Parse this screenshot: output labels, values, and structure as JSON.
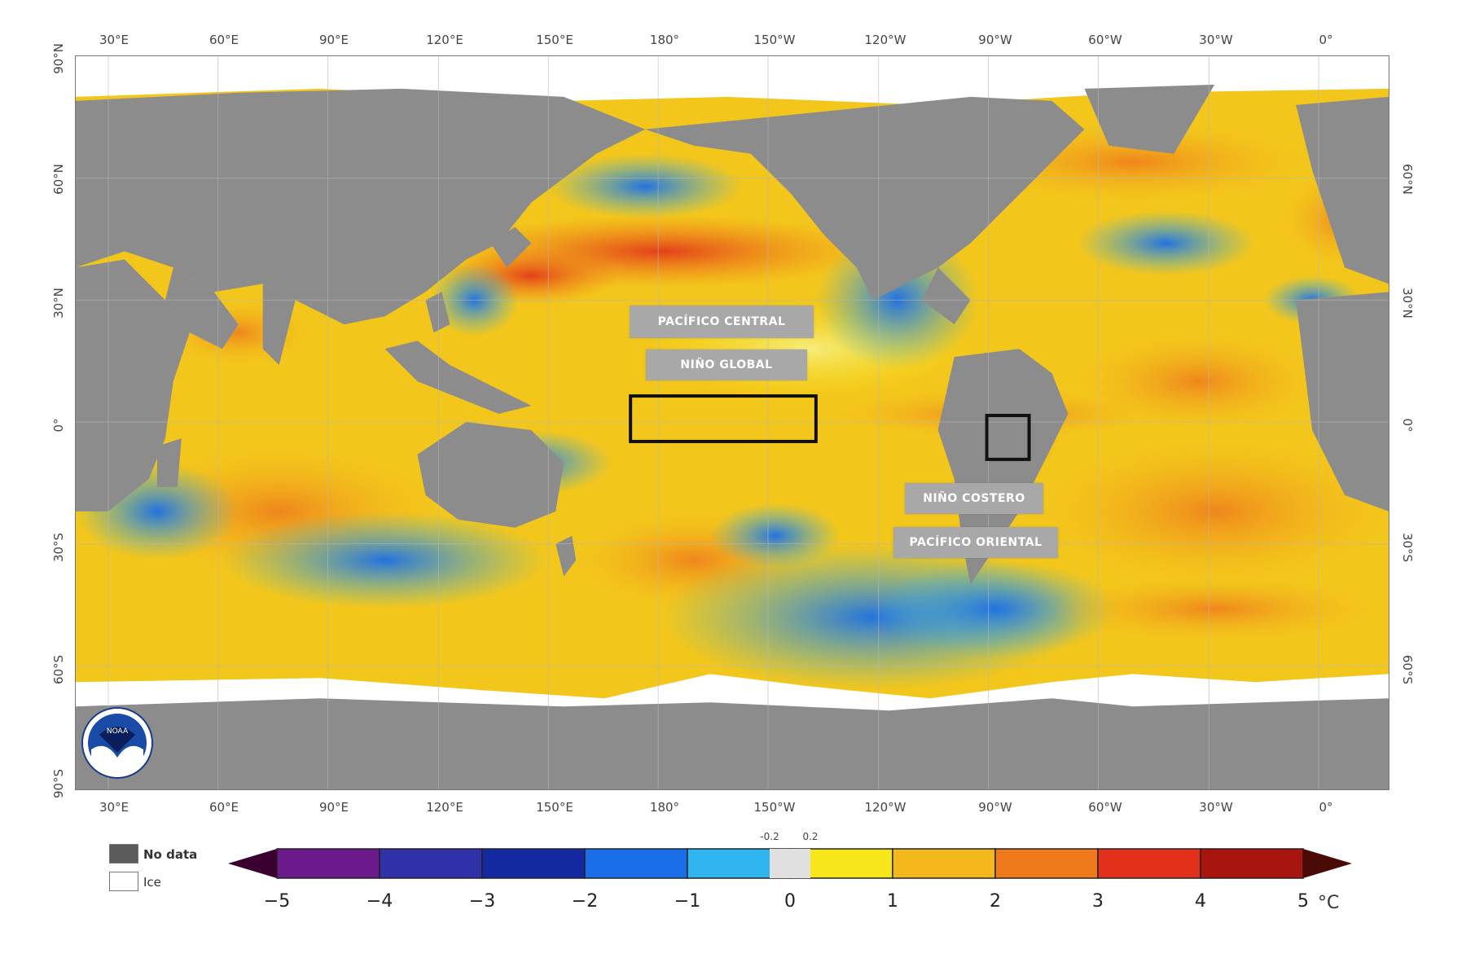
{
  "map": {
    "top_lon_labels": [
      "30°E",
      "60°E",
      "90°E",
      "120°E",
      "150°E",
      "180°",
      "150°W",
      "120°W",
      "90°W",
      "60°W",
      "30°W",
      "0°"
    ],
    "bottom_lon_labels": [
      "30°E",
      "60°E",
      "90°E",
      "120°E",
      "150°E",
      "180°",
      "150°W",
      "120°W",
      "90°W",
      "60°W",
      "30°W",
      "0°"
    ],
    "left_lat_labels": [
      "90°N",
      "60°N",
      "30°N",
      "0°",
      "30°S",
      "60°S",
      "90°S"
    ],
    "right_lat_labels": [
      "60°N",
      "30°N",
      "0°",
      "30°S",
      "60°S"
    ],
    "region_labels": {
      "pacifico_central": "PACÍFICO CENTRAL",
      "nino_global": "NIÑO GLOBAL",
      "nino_costero": "NIÑO COSTERO",
      "pacifico_oriental": "PACÍFICO ORIENTAL"
    },
    "colors": {
      "land": "#8c8c8c",
      "no_data": "#5a5a5a",
      "ice": "#ffffff",
      "box_outline": "#111111"
    }
  },
  "legend": {
    "no_data_label": "No data",
    "ice_label": "Ice",
    "unit": "°C",
    "ticks": [
      "−5",
      "−4",
      "−3",
      "−2",
      "−1",
      "0",
      "1",
      "2",
      "3",
      "4",
      "5"
    ],
    "small_ticks": [
      "-0.2",
      "0.2"
    ],
    "color_stops": [
      "#3a0030",
      "#6a1a8a",
      "#3030a8",
      "#1428a0",
      "#1a6ee8",
      "#2fb6f0",
      "#e0e0e0",
      "#f6e61a",
      "#f2b81c",
      "#ee7a1c",
      "#e2301a",
      "#a8140e",
      "#4a0a06"
    ]
  },
  "logo": {
    "name": "NOAA"
  }
}
